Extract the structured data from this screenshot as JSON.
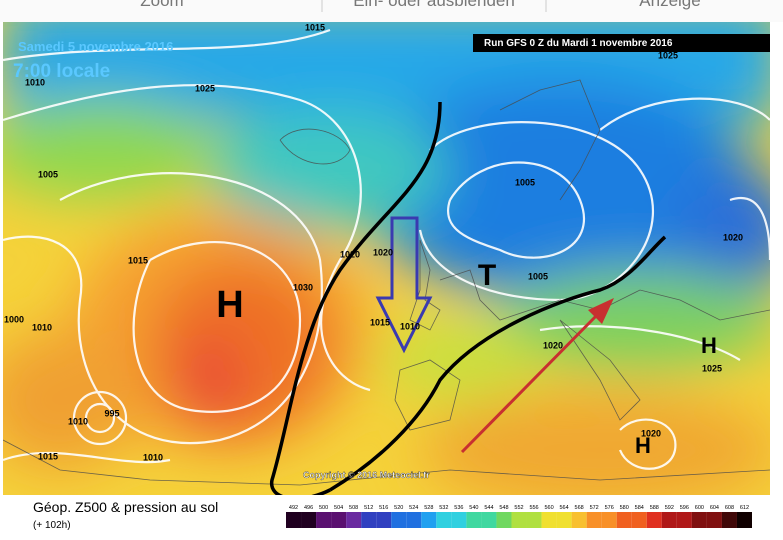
{
  "toolbar": {
    "items": [
      "Zoom",
      "Ein- oder ausblenden",
      "Anzeige"
    ]
  },
  "map": {
    "date": "Samedi 5 novembre 2016",
    "time": "7:00 locale",
    "run": "Run GFS 0 Z du Mardi 1 novembre 2016",
    "isobars": [
      "1015",
      "1025",
      "1010",
      "1005",
      "1015",
      "1030",
      "1020",
      "1020",
      "1015",
      "1010",
      "1005",
      "1005",
      "1020",
      "1025",
      "1020",
      "1025",
      "1020",
      "1000",
      "1010",
      "995",
      "1010",
      "1015",
      "1010"
    ],
    "centers": [
      "H",
      "T",
      "H",
      "H"
    ],
    "copyright": "Copyright © 2016 Meteociel.fr"
  },
  "legend": {
    "title": "Géop. Z500 & pression au sol",
    "lead": "(+ 102h)",
    "scale": [
      492,
      496,
      500,
      504,
      508,
      512,
      516,
      520,
      524,
      528,
      532,
      536,
      540,
      544,
      548,
      552,
      556,
      560,
      564,
      568,
      572,
      576,
      580,
      584,
      588,
      592,
      596,
      600,
      604,
      608,
      612
    ]
  }
}
